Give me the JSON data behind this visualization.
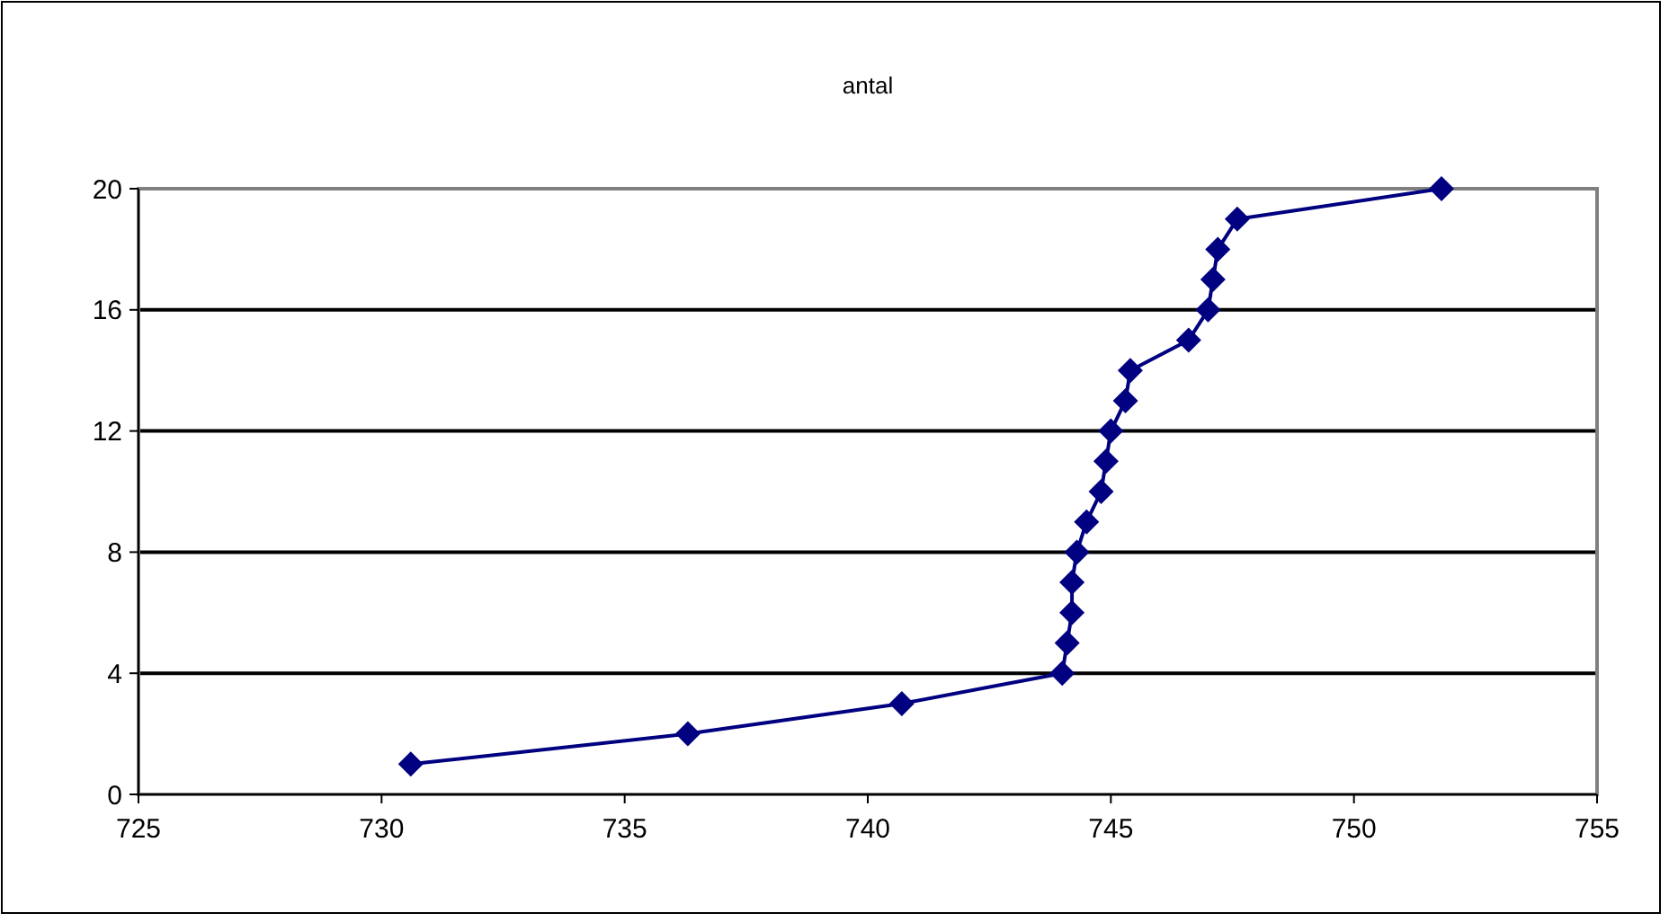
{
  "chart_data": {
    "type": "line",
    "title": "antal",
    "x": [
      730.6,
      736.3,
      740.7,
      744.0,
      744.1,
      744.2,
      744.2,
      744.3,
      744.5,
      744.8,
      744.9,
      745.0,
      745.3,
      745.4,
      746.6,
      747.0,
      747.1,
      747.2,
      747.6,
      751.8
    ],
    "series": [
      {
        "color": "#000080",
        "values": [
          1,
          2,
          3,
          4,
          5,
          6,
          7,
          8,
          9,
          10,
          11,
          12,
          13,
          14,
          15,
          16,
          17,
          18,
          19,
          20
        ]
      }
    ],
    "xlim": [
      725,
      755
    ],
    "xticks": [
      725,
      730,
      735,
      740,
      745,
      750,
      755
    ],
    "ylim": [
      0,
      20
    ],
    "yticks": [
      0,
      4,
      8,
      12,
      16,
      20
    ],
    "grid": "y",
    "marker": "diamond"
  }
}
